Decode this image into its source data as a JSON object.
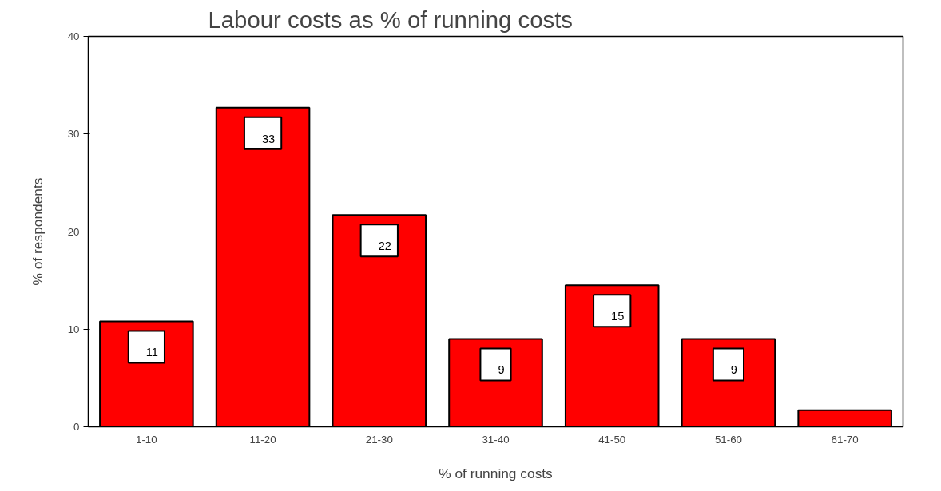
{
  "chart_data": {
    "type": "bar",
    "title": "Labour costs as % of running costs",
    "xlabel": "% of running costs",
    "ylabel": "% of respondents",
    "categories": [
      "1-10",
      "11-20",
      "21-30",
      "31-40",
      "41-50",
      "51-60",
      "61-70"
    ],
    "values": [
      10.8,
      32.7,
      21.7,
      9.0,
      14.5,
      9.0,
      1.7
    ],
    "value_labels": [
      "11",
      "33",
      "22",
      "9",
      "15",
      "9",
      null
    ],
    "color": "#ff0000",
    "ylim": [
      0,
      40
    ],
    "yticks": [
      0,
      10,
      20,
      30,
      40
    ],
    "grid": false
  }
}
